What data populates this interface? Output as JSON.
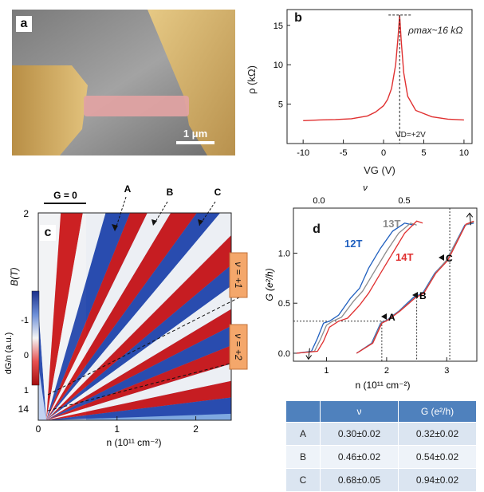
{
  "panel_a": {
    "label": "a",
    "scale_bar": "1 μm",
    "colors": {
      "background": "#8d8d8d",
      "contact": "#c8a25a",
      "ribbon": "#e0a0a0"
    }
  },
  "panel_b": {
    "label": "b",
    "annotation_max": "ρmax~16 kΩ",
    "annotation_vd": "VD=+2V"
  },
  "panel_c": {
    "label": "c",
    "g_zero_label": "G = 0",
    "markers": [
      "A",
      "B",
      "C"
    ],
    "filling_labels": [
      "ν = +1",
      "ν = +2"
    ],
    "colorbar_ticks": [
      "-1",
      "0",
      "1"
    ],
    "colorbar_label": "dG/n (a.u.)",
    "colors": {
      "neg": "#2244aa",
      "zero": "#f5f5f5",
      "pos": "#cc1111"
    }
  },
  "panel_d": {
    "label": "d",
    "legend": [
      "12T",
      "13T",
      "14T"
    ],
    "markers": [
      "A",
      "B",
      "C"
    ],
    "top_axis_label": "ν",
    "top_ticks": [
      "0.0",
      "0.5"
    ],
    "colors": {
      "12T": "#1f5fbf",
      "13T": "#8c8c8c",
      "14T": "#e03030"
    }
  },
  "table": {
    "headers": [
      "",
      "ν",
      "G (e²/h)"
    ],
    "rows": [
      [
        "A",
        "0.30±0.02",
        "0.32±0.02"
      ],
      [
        "B",
        "0.46±0.02",
        "0.54±0.02"
      ],
      [
        "C",
        "0.68±0.05",
        "0.94±0.02"
      ]
    ]
  },
  "chart_data": [
    {
      "type": "line",
      "panel": "b",
      "xlabel": "VG (V)",
      "ylabel": "ρ (kΩ)",
      "xlim": [
        -12,
        11
      ],
      "ylim": [
        0,
        17
      ],
      "xticks": [
        -10,
        -5,
        0,
        5,
        10
      ],
      "yticks": [
        5,
        10,
        15
      ],
      "series": [
        {
          "values_x": [
            -10,
            -8,
            -6,
            -4,
            -2,
            -1,
            0,
            0.5,
            1,
            1.5,
            1.8,
            2.0,
            2.2,
            2.5,
            3,
            4,
            6,
            8,
            10
          ],
          "values_y": [
            2.9,
            3.0,
            3.05,
            3.15,
            3.5,
            4.0,
            4.8,
            5.6,
            7.0,
            10.0,
            13.5,
            16.3,
            13.0,
            9.0,
            6.0,
            4.2,
            3.4,
            3.1,
            3.0
          ]
        }
      ]
    },
    {
      "type": "heatmap",
      "panel": "c",
      "xlabel": "n (10¹¹ cm⁻²)",
      "ylabel": "B(T)",
      "xlim": [
        0,
        2.45
      ],
      "ylim": [
        2,
        14
      ],
      "xticks": [
        0,
        1,
        2
      ],
      "yticks": [
        2,
        14
      ]
    },
    {
      "type": "line",
      "panel": "d",
      "xlabel": "n (10¹¹ cm⁻²)",
      "ylabel": "G (e²/h)",
      "xlim": [
        0.45,
        3.5
      ],
      "ylim": [
        -0.08,
        1.45
      ],
      "xticks": [
        1,
        2,
        3
      ],
      "yticks": [
        0.0,
        0.5,
        1.0
      ],
      "series": [
        {
          "name": "12T",
          "x": [
            0.5,
            0.75,
            0.85,
            0.95,
            1.05,
            1.2,
            1.4,
            1.55,
            1.7,
            1.9,
            2.1,
            2.3,
            2.45
          ],
          "y": [
            0.0,
            0.02,
            0.15,
            0.3,
            0.32,
            0.38,
            0.55,
            0.65,
            0.85,
            1.05,
            1.22,
            1.3,
            1.28
          ]
        },
        {
          "name": "13T",
          "x": [
            0.5,
            0.8,
            0.9,
            1.0,
            1.1,
            1.25,
            1.45,
            1.6,
            1.8,
            2.0,
            2.2,
            2.4,
            2.5
          ],
          "y": [
            0.0,
            0.02,
            0.14,
            0.28,
            0.32,
            0.36,
            0.52,
            0.62,
            0.82,
            1.02,
            1.2,
            1.3,
            1.28
          ]
        },
        {
          "name": "14T",
          "x": [
            0.5,
            0.85,
            0.95,
            1.05,
            1.2,
            1.35,
            1.55,
            1.7,
            1.9,
            2.1,
            2.3,
            2.5,
            2.6
          ],
          "y": [
            0.0,
            0.02,
            0.12,
            0.26,
            0.32,
            0.35,
            0.48,
            0.6,
            0.8,
            1.0,
            1.2,
            1.32,
            1.3
          ]
        },
        {
          "name": "12T",
          "x": [
            1.5,
            1.75,
            1.9,
            2.0,
            2.2,
            2.45,
            2.6,
            2.8,
            3.0,
            3.1,
            3.3,
            3.45
          ],
          "y": [
            0.0,
            0.1,
            0.3,
            0.33,
            0.42,
            0.56,
            0.6,
            0.8,
            0.93,
            1.05,
            1.28,
            1.3
          ]
        },
        {
          "name": "13T",
          "x": [
            1.5,
            1.76,
            1.91,
            2.01,
            2.21,
            2.46,
            2.61,
            2.81,
            3.01,
            3.11,
            3.31,
            3.45
          ],
          "y": [
            0.0,
            0.1,
            0.3,
            0.33,
            0.42,
            0.55,
            0.6,
            0.8,
            0.94,
            1.06,
            1.28,
            1.31
          ]
        },
        {
          "name": "14T",
          "x": [
            1.5,
            1.77,
            1.92,
            2.02,
            2.22,
            2.47,
            2.62,
            2.82,
            3.02,
            3.12,
            3.32,
            3.45
          ],
          "y": [
            0.0,
            0.1,
            0.3,
            0.33,
            0.42,
            0.55,
            0.6,
            0.8,
            0.93,
            1.05,
            1.29,
            1.32
          ]
        }
      ]
    }
  ]
}
